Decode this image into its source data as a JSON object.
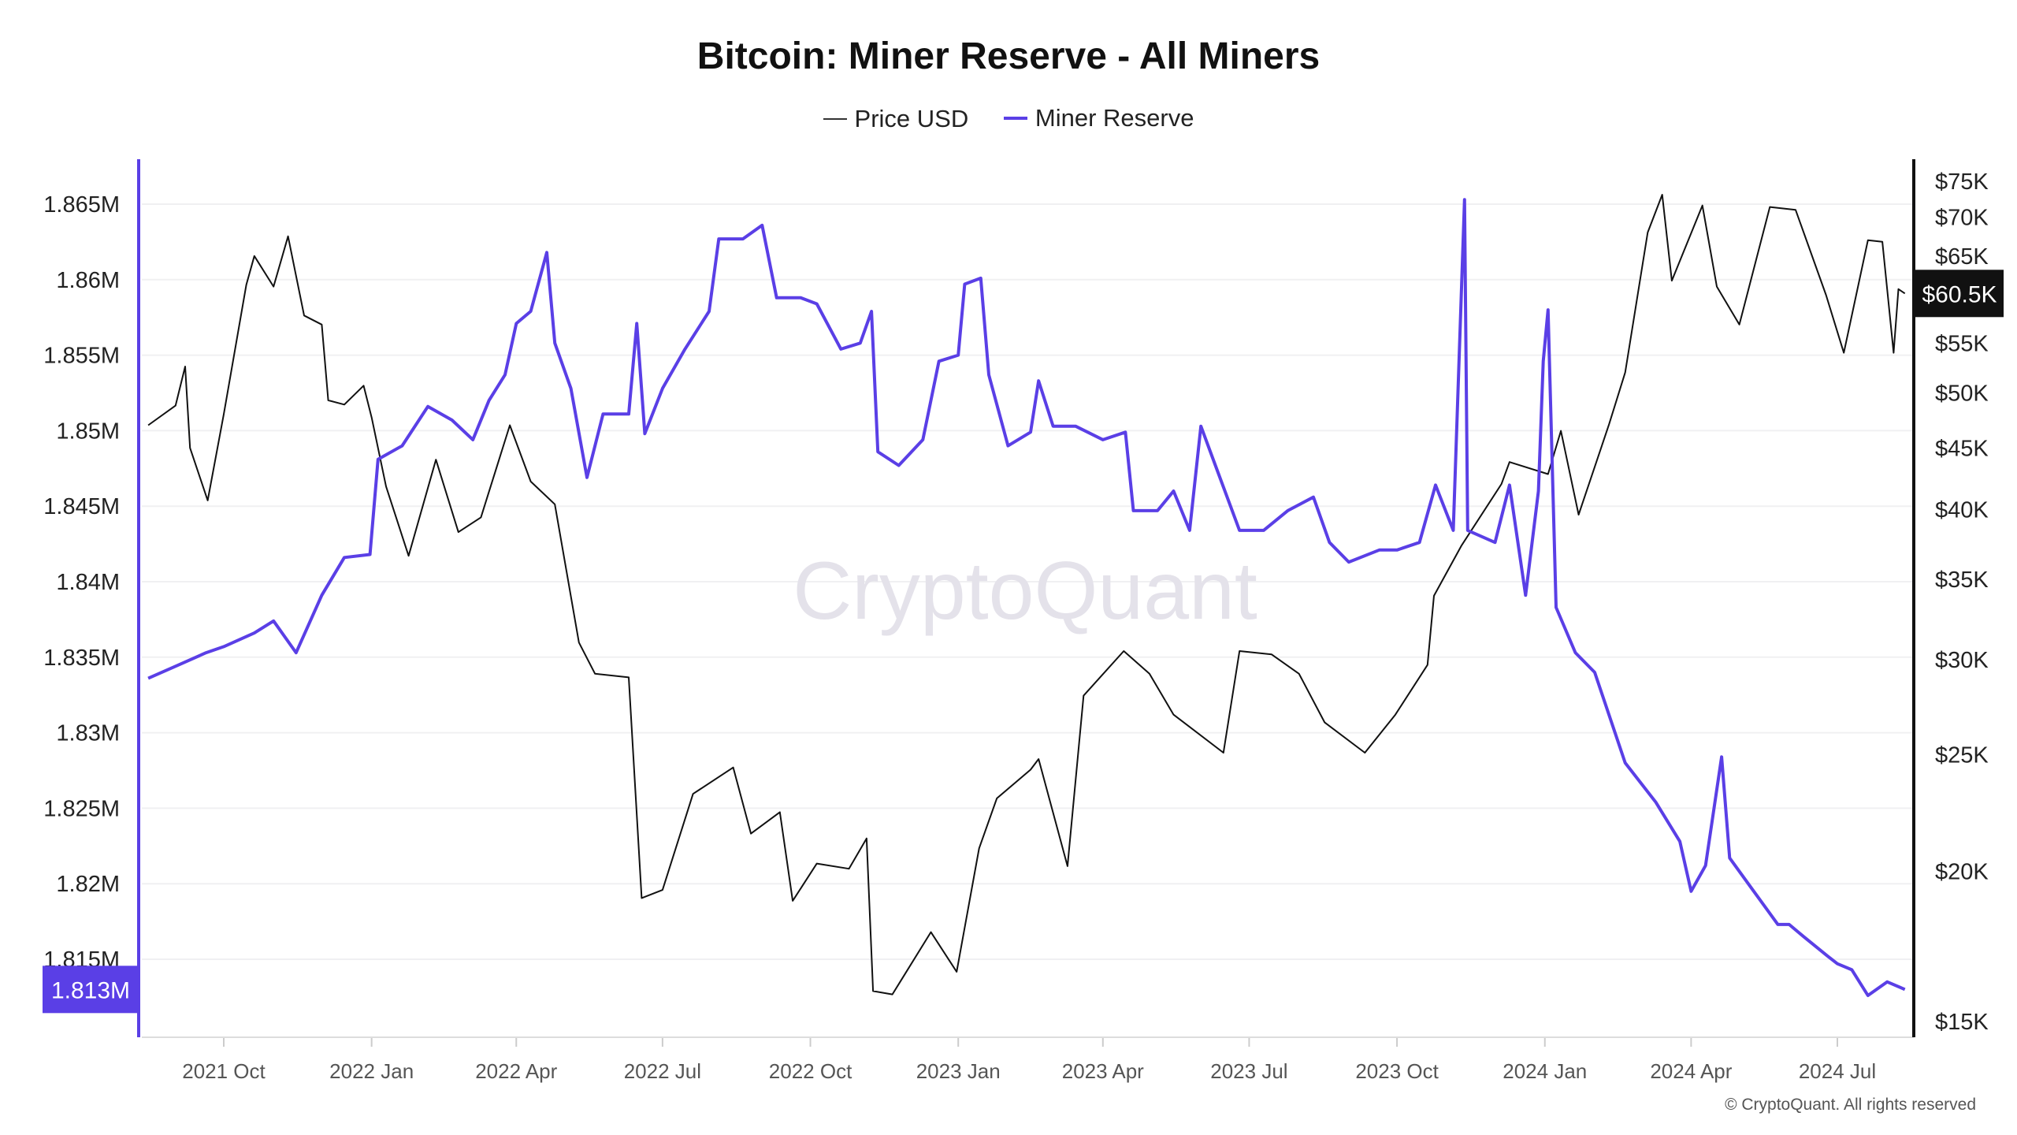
{
  "chart_data": {
    "type": "line",
    "title": "Bitcoin: Miner Reserve - All Miners",
    "watermark": "CryptoQuant",
    "copyright": "© CryptoQuant. All rights reserved",
    "legend_placement": "top-center",
    "grid": true,
    "x_ticks": [
      "2021 Oct",
      "2022 Jan",
      "2022 Apr",
      "2022 Jul",
      "2022 Oct",
      "2023 Jan",
      "2023 Apr",
      "2023 Jul",
      "2023 Oct",
      "2024 Jan",
      "2024 Apr",
      "2024 Jul"
    ],
    "x_tick_dates": [
      "2021-10-01",
      "2022-01-01",
      "2022-04-01",
      "2022-07-01",
      "2022-10-01",
      "2023-01-01",
      "2023-04-01",
      "2023-07-01",
      "2023-10-01",
      "2024-01-01",
      "2024-04-01",
      "2024-07-01"
    ],
    "xlim": [
      "2021-08-15",
      "2024-08-12"
    ],
    "left_axis": {
      "ticks": [
        "1.815M",
        "1.82M",
        "1.825M",
        "1.83M",
        "1.835M",
        "1.84M",
        "1.845M",
        "1.85M",
        "1.855M",
        "1.86M",
        "1.865M"
      ],
      "tick_values": [
        1.815,
        1.82,
        1.825,
        1.83,
        1.835,
        1.84,
        1.845,
        1.85,
        1.855,
        1.86,
        1.865
      ],
      "ylim": [
        1.81,
        1.868
      ],
      "unit": "M BTC",
      "current_label": "1.813M",
      "current_value": 1.813
    },
    "right_axis": {
      "scale": "log",
      "ticks": [
        "$15K",
        "$20K",
        "$25K",
        "$30K",
        "$35K",
        "$40K",
        "$45K",
        "$50K",
        "$55K",
        "$65K",
        "$70K",
        "$75K"
      ],
      "tick_values": [
        15000,
        20000,
        25000,
        30000,
        35000,
        40000,
        45000,
        50000,
        55000,
        65000,
        70000,
        75000
      ],
      "ylim": [
        15000,
        75000
      ],
      "current_label": "$60.5K",
      "current_value": 60500
    },
    "series": [
      {
        "name": "Price USD",
        "axis": "right",
        "color": "#111111",
        "points": [
          [
            "2021-08-15",
            47000
          ],
          [
            "2021-09-01",
            48800
          ],
          [
            "2021-09-07",
            52600
          ],
          [
            "2021-09-10",
            45000
          ],
          [
            "2021-09-21",
            40700
          ],
          [
            "2021-10-01",
            48000
          ],
          [
            "2021-10-15",
            61500
          ],
          [
            "2021-10-20",
            65000
          ],
          [
            "2021-11-01",
            61300
          ],
          [
            "2021-11-10",
            67500
          ],
          [
            "2021-11-20",
            58000
          ],
          [
            "2021-12-01",
            57000
          ],
          [
            "2021-12-05",
            49300
          ],
          [
            "2021-12-15",
            48900
          ],
          [
            "2021-12-27",
            50700
          ],
          [
            "2022-01-01",
            47700
          ],
          [
            "2022-01-10",
            41800
          ],
          [
            "2022-01-24",
            36600
          ],
          [
            "2022-02-10",
            44000
          ],
          [
            "2022-02-24",
            38300
          ],
          [
            "2022-03-10",
            39400
          ],
          [
            "2022-03-28",
            47000
          ],
          [
            "2022-04-10",
            42200
          ],
          [
            "2022-04-25",
            40400
          ],
          [
            "2022-05-10",
            31000
          ],
          [
            "2022-05-20",
            29200
          ],
          [
            "2022-06-10",
            29000
          ],
          [
            "2022-06-18",
            19000
          ],
          [
            "2022-07-01",
            19300
          ],
          [
            "2022-07-20",
            23200
          ],
          [
            "2022-08-14",
            24400
          ],
          [
            "2022-08-25",
            21500
          ],
          [
            "2022-09-12",
            22400
          ],
          [
            "2022-09-20",
            18900
          ],
          [
            "2022-10-05",
            20300
          ],
          [
            "2022-10-25",
            20100
          ],
          [
            "2022-11-05",
            21300
          ],
          [
            "2022-11-09",
            15900
          ],
          [
            "2022-11-21",
            15800
          ],
          [
            "2022-12-15",
            17800
          ],
          [
            "2022-12-31",
            16500
          ],
          [
            "2023-01-14",
            20900
          ],
          [
            "2023-01-25",
            23000
          ],
          [
            "2023-02-15",
            24300
          ],
          [
            "2023-02-20",
            24800
          ],
          [
            "2023-03-10",
            20200
          ],
          [
            "2023-03-20",
            28000
          ],
          [
            "2023-04-14",
            30500
          ],
          [
            "2023-04-30",
            29200
          ],
          [
            "2023-05-15",
            27000
          ],
          [
            "2023-06-15",
            25100
          ],
          [
            "2023-06-25",
            30500
          ],
          [
            "2023-07-15",
            30300
          ],
          [
            "2023-08-01",
            29200
          ],
          [
            "2023-08-17",
            26600
          ],
          [
            "2023-09-11",
            25100
          ],
          [
            "2023-09-30",
            27000
          ],
          [
            "2023-10-20",
            29700
          ],
          [
            "2023-10-24",
            33900
          ],
          [
            "2023-11-10",
            37300
          ],
          [
            "2023-12-05",
            42000
          ],
          [
            "2023-12-10",
            43800
          ],
          [
            "2024-01-03",
            42800
          ],
          [
            "2024-01-11",
            46500
          ],
          [
            "2024-01-22",
            39600
          ],
          [
            "2024-02-10",
            47100
          ],
          [
            "2024-02-20",
            52000
          ],
          [
            "2024-03-05",
            68000
          ],
          [
            "2024-03-14",
            73100
          ],
          [
            "2024-03-20",
            62000
          ],
          [
            "2024-04-08",
            71600
          ],
          [
            "2024-04-17",
            61300
          ],
          [
            "2024-05-01",
            57000
          ],
          [
            "2024-05-20",
            71400
          ],
          [
            "2024-06-05",
            71000
          ],
          [
            "2024-06-24",
            60300
          ],
          [
            "2024-07-05",
            54000
          ],
          [
            "2024-07-20",
            67000
          ],
          [
            "2024-07-29",
            66800
          ],
          [
            "2024-08-05",
            54000
          ],
          [
            "2024-08-08",
            61000
          ],
          [
            "2024-08-12",
            60500
          ]
        ]
      },
      {
        "name": "Miner Reserve",
        "axis": "left",
        "color": "#5a3fe6",
        "points": [
          [
            "2021-08-15",
            1.8336
          ],
          [
            "2021-09-01",
            1.8344
          ],
          [
            "2021-09-20",
            1.8353
          ],
          [
            "2021-10-01",
            1.8357
          ],
          [
            "2021-10-20",
            1.8366
          ],
          [
            "2021-11-01",
            1.8374
          ],
          [
            "2021-11-15",
            1.8353
          ],
          [
            "2021-12-01",
            1.8391
          ],
          [
            "2021-12-15",
            1.8416
          ],
          [
            "2021-12-31",
            1.8418
          ],
          [
            "2022-01-05",
            1.8481
          ],
          [
            "2022-01-20",
            1.849
          ],
          [
            "2022-02-05",
            1.8516
          ],
          [
            "2022-02-20",
            1.8507
          ],
          [
            "2022-03-05",
            1.8494
          ],
          [
            "2022-03-15",
            1.852
          ],
          [
            "2022-03-25",
            1.8537
          ],
          [
            "2022-04-01",
            1.8571
          ],
          [
            "2022-04-10",
            1.8579
          ],
          [
            "2022-04-20",
            1.8618
          ],
          [
            "2022-04-25",
            1.8558
          ],
          [
            "2022-05-05",
            1.8528
          ],
          [
            "2022-05-15",
            1.8469
          ],
          [
            "2022-05-25",
            1.8511
          ],
          [
            "2022-06-10",
            1.8511
          ],
          [
            "2022-06-15",
            1.8571
          ],
          [
            "2022-06-20",
            1.8498
          ],
          [
            "2022-07-01",
            1.8528
          ],
          [
            "2022-07-15",
            1.8554
          ],
          [
            "2022-07-30",
            1.8579
          ],
          [
            "2022-08-05",
            1.8627
          ],
          [
            "2022-08-20",
            1.8627
          ],
          [
            "2022-09-01",
            1.8636
          ],
          [
            "2022-09-10",
            1.8588
          ],
          [
            "2022-09-25",
            1.8588
          ],
          [
            "2022-10-05",
            1.8584
          ],
          [
            "2022-10-20",
            1.8554
          ],
          [
            "2022-11-01",
            1.8558
          ],
          [
            "2022-11-08",
            1.8579
          ],
          [
            "2022-11-12",
            1.8486
          ],
          [
            "2022-11-25",
            1.8477
          ],
          [
            "2022-12-10",
            1.8494
          ],
          [
            "2022-12-20",
            1.8546
          ],
          [
            "2023-01-01",
            1.855
          ],
          [
            "2023-01-05",
            1.8597
          ],
          [
            "2023-01-15",
            1.8601
          ],
          [
            "2023-01-20",
            1.8537
          ],
          [
            "2023-02-01",
            1.849
          ],
          [
            "2023-02-15",
            1.8499
          ],
          [
            "2023-02-20",
            1.8533
          ],
          [
            "2023-03-01",
            1.8503
          ],
          [
            "2023-03-15",
            1.8503
          ],
          [
            "2023-04-01",
            1.8494
          ],
          [
            "2023-04-15",
            1.8499
          ],
          [
            "2023-04-20",
            1.8447
          ],
          [
            "2023-05-05",
            1.8447
          ],
          [
            "2023-05-15",
            1.846
          ],
          [
            "2023-05-25",
            1.8434
          ],
          [
            "2023-06-01",
            1.8503
          ],
          [
            "2023-06-10",
            1.8477
          ],
          [
            "2023-06-25",
            1.8434
          ],
          [
            "2023-07-10",
            1.8434
          ],
          [
            "2023-07-25",
            1.8447
          ],
          [
            "2023-08-10",
            1.8456
          ],
          [
            "2023-08-20",
            1.8426
          ],
          [
            "2023-09-01",
            1.8413
          ],
          [
            "2023-09-20",
            1.8421
          ],
          [
            "2023-10-01",
            1.8421
          ],
          [
            "2023-10-15",
            1.8426
          ],
          [
            "2023-10-25",
            1.8464
          ],
          [
            "2023-11-05",
            1.8434
          ],
          [
            "2023-11-12",
            1.8653
          ],
          [
            "2023-11-14",
            1.8434
          ],
          [
            "2023-12-01",
            1.8426
          ],
          [
            "2023-12-10",
            1.8464
          ],
          [
            "2023-12-20",
            1.8391
          ],
          [
            "2023-12-28",
            1.846
          ],
          [
            "2023-12-31",
            1.8546
          ],
          [
            "2024-01-03",
            1.858
          ],
          [
            "2024-01-08",
            1.8383
          ],
          [
            "2024-01-20",
            1.8353
          ],
          [
            "2024-02-01",
            1.834
          ],
          [
            "2024-02-20",
            1.828
          ],
          [
            "2024-03-10",
            1.8254
          ],
          [
            "2024-03-25",
            1.8228
          ],
          [
            "2024-04-01",
            1.8195
          ],
          [
            "2024-04-10",
            1.8212
          ],
          [
            "2024-04-20",
            1.8284
          ],
          [
            "2024-04-25",
            1.8217
          ],
          [
            "2024-05-10",
            1.8195
          ],
          [
            "2024-05-25",
            1.8173
          ],
          [
            "2024-06-01",
            1.8173
          ],
          [
            "2024-06-10",
            1.8165
          ],
          [
            "2024-06-25",
            1.8152
          ],
          [
            "2024-07-01",
            1.8147
          ],
          [
            "2024-07-10",
            1.8143
          ],
          [
            "2024-07-20",
            1.8126
          ],
          [
            "2024-08-01",
            1.8135
          ],
          [
            "2024-08-12",
            1.813
          ]
        ]
      }
    ]
  }
}
